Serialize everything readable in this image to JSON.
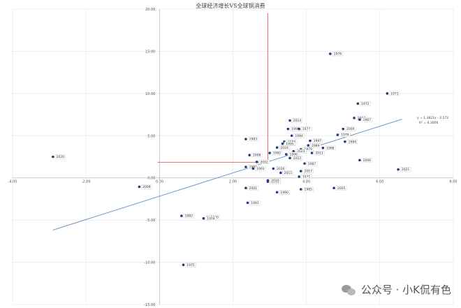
{
  "chart_data": {
    "type": "scatter",
    "title": "全球经济增长VS全球铜消费",
    "xlim": [
      -4,
      8
    ],
    "ylim": [
      -15,
      20
    ],
    "x_ticks": [
      -4,
      -2,
      0,
      2,
      4,
      6,
      8
    ],
    "y_ticks": [
      -15,
      -10,
      -5,
      0,
      5,
      10,
      15,
      20
    ],
    "x_tick_labels": [
      "-4.00",
      "-2.00",
      "0.00",
      "2.00",
      "4.00",
      "6.00",
      "8.00"
    ],
    "y_tick_labels": [
      "-15.00",
      "-10.00",
      "-5.00",
      "0.00",
      "5.00",
      "10.00",
      "15.00",
      "20.00"
    ],
    "grid": true,
    "trendline": {
      "slope": 1.3821,
      "intercept": -2.172,
      "x_range": [
        -2.9,
        6.6
      ],
      "equation": "y = 1.3821x - 2.172",
      "r2": "R² = 0.3006"
    },
    "reference_lines": {
      "x": 2.95,
      "y": 1.85,
      "x_from": -0.05,
      "y_to": 19.5,
      "color": "#e86a6a"
    },
    "highlight_point": {
      "x": 2.95,
      "y": 1.85
    },
    "points": [
      {
        "x": 4.65,
        "y": 14.7,
        "label": "1976"
      },
      {
        "x": 6.2,
        "y": 10.0,
        "label": "1973"
      },
      {
        "x": 5.4,
        "y": 8.8,
        "label": "1972"
      },
      {
        "x": 5.3,
        "y": 7.1,
        "label": "2004"
      },
      {
        "x": 5.45,
        "y": 6.9,
        "label": "1967"
      },
      {
        "x": 3.55,
        "y": 6.8,
        "label": "2014"
      },
      {
        "x": 5.0,
        "y": 5.8,
        "label": "2000"
      },
      {
        "x": 3.5,
        "y": 5.8,
        "label": "1999"
      },
      {
        "x": 3.8,
        "y": 5.8,
        "label": "1977"
      },
      {
        "x": 4.85,
        "y": 5.1,
        "label": "1978"
      },
      {
        "x": 3.6,
        "y": 5.0,
        "label": "1994"
      },
      {
        "x": 2.35,
        "y": 4.6,
        "label": "1983"
      },
      {
        "x": 4.1,
        "y": 4.4,
        "label": "1997"
      },
      {
        "x": 5.05,
        "y": 4.3,
        "label": "1984"
      },
      {
        "x": 3.4,
        "y": 4.3,
        "label": "1986"
      },
      {
        "x": 3.35,
        "y": 4.05,
        "label": "1995"
      },
      {
        "x": 4.05,
        "y": 3.85,
        "label": "1989"
      },
      {
        "x": 3.2,
        "y": 3.6,
        "label": "2024"
      },
      {
        "x": 4.45,
        "y": 3.55,
        "label": "1988"
      },
      {
        "x": 3.85,
        "y": 3.4,
        "label": "1979"
      },
      {
        "x": 3.65,
        "y": 3.15,
        "label": "2023"
      },
      {
        "x": 4.15,
        "y": 2.95,
        "label": "2011"
      },
      {
        "x": 3.0,
        "y": 2.95,
        "label": "1992"
      },
      {
        "x": 3.45,
        "y": 2.8,
        "label": "1996"
      },
      {
        "x": 2.45,
        "y": 2.7,
        "label": "1998"
      },
      {
        "x": 3.55,
        "y": 2.35,
        "label": "2022"
      },
      {
        "x": 5.45,
        "y": 2.1,
        "label": "2006"
      },
      {
        "x": 2.65,
        "y": 1.9,
        "label": "2002"
      },
      {
        "x": 3.95,
        "y": 1.7,
        "label": "1987"
      },
      {
        "x": 2.35,
        "y": 1.3,
        "label": "1981"
      },
      {
        "x": 2.55,
        "y": 1.1,
        "label": "1993"
      },
      {
        "x": 3.1,
        "y": 1.1,
        "label": "2016"
      },
      {
        "x": 3.85,
        "y": 0.8,
        "label": "2017"
      },
      {
        "x": 3.3,
        "y": 0.6,
        "label": "2015"
      },
      {
        "x": 3.8,
        "y": 0.15,
        "label": "1971"
      },
      {
        "x": 6.5,
        "y": 1.0,
        "label": "2021"
      },
      {
        "x": 2.95,
        "y": -0.45,
        "label": "2008"
      },
      {
        "x": 2.95,
        "y": -0.3,
        "label": "2010"
      },
      {
        "x": 2.35,
        "y": -1.2,
        "label": "2001"
      },
      {
        "x": 3.85,
        "y": -1.35,
        "label": "1985"
      },
      {
        "x": 4.75,
        "y": -1.2,
        "label": "2005"
      },
      {
        "x": 3.2,
        "y": -1.7,
        "label": "1990"
      },
      {
        "x": 2.4,
        "y": -2.95,
        "label": "1991"
      },
      {
        "x": -2.9,
        "y": 2.5,
        "label": "2020"
      },
      {
        "x": -0.55,
        "y": -1.05,
        "label": "2009"
      },
      {
        "x": 0.6,
        "y": -4.5,
        "label": "1982"
      },
      {
        "x": 1.3,
        "y": -4.65,
        "label": "1980"
      },
      {
        "x": 1.2,
        "y": -4.8,
        "label": "1974"
      },
      {
        "x": 0.65,
        "y": -10.3,
        "label": "1975"
      }
    ]
  },
  "watermark": {
    "icon": "wechat-icon",
    "text": "公众号 · 小K侃有色"
  }
}
